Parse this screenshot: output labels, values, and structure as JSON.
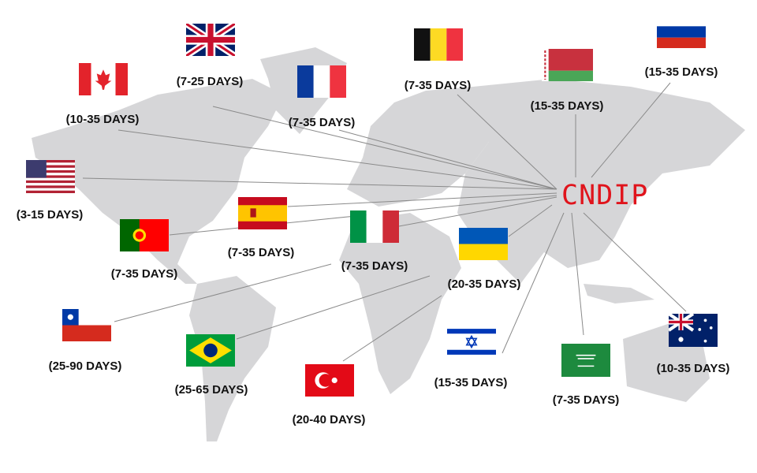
{
  "hub": {
    "label": "CNDIP",
    "color": "#e0141c"
  },
  "destinations": [
    {
      "country": "United Kingdom",
      "flag_icon": "uk-flag-icon",
      "days": "(7-25 DAYS)"
    },
    {
      "country": "Canada",
      "flag_icon": "canada-flag-icon",
      "days": "(10-35 DAYS)"
    },
    {
      "country": "France",
      "flag_icon": "france-flag-icon",
      "days": "(7-35 DAYS)"
    },
    {
      "country": "Belgium",
      "flag_icon": "belgium-flag-icon",
      "days": "(7-35 DAYS)"
    },
    {
      "country": "Belarus",
      "flag_icon": "belarus-flag-icon",
      "days": "(15-35 DAYS)"
    },
    {
      "country": "Russia",
      "flag_icon": "russia-flag-icon",
      "days": "(15-35 DAYS)"
    },
    {
      "country": "United States",
      "flag_icon": "usa-flag-icon",
      "days": "(3-15 DAYS)"
    },
    {
      "country": "Spain",
      "flag_icon": "spain-flag-icon",
      "days": "(7-35 DAYS)"
    },
    {
      "country": "Portugal",
      "flag_icon": "portugal-flag-icon",
      "days": "(7-35 DAYS)"
    },
    {
      "country": "Italy",
      "flag_icon": "italy-flag-icon",
      "days": "(7-35 DAYS)"
    },
    {
      "country": "Ukraine",
      "flag_icon": "ukraine-flag-icon",
      "days": "(20-35 DAYS)"
    },
    {
      "country": "Chile",
      "flag_icon": "chile-flag-icon",
      "days": "(25-90 DAYS)"
    },
    {
      "country": "Brazil",
      "flag_icon": "brazil-flag-icon",
      "days": "(25-65 DAYS)"
    },
    {
      "country": "Turkey",
      "flag_icon": "turkey-flag-icon",
      "days": "(20-40 DAYS)"
    },
    {
      "country": "Israel",
      "flag_icon": "israel-flag-icon",
      "days": "(15-35 DAYS)"
    },
    {
      "country": "Saudi Arabia",
      "flag_icon": "saudi-flag-icon",
      "days": "(7-35 DAYS)"
    },
    {
      "country": "Australia",
      "flag_icon": "australia-flag-icon",
      "days": "(10-35 DAYS)"
    }
  ]
}
